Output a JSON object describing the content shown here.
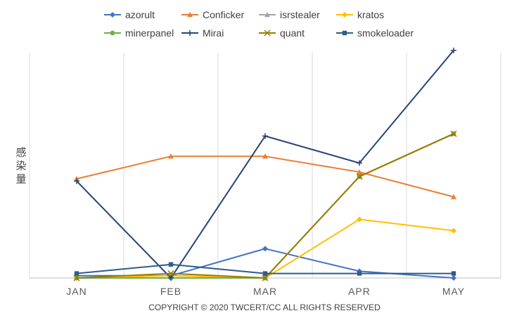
{
  "chart_data": {
    "type": "line",
    "title": "",
    "xlabel": "",
    "ylabel": "感染量",
    "categories": [
      "JAN",
      "FEB",
      "MAR",
      "APR",
      "MAY"
    ],
    "ylim": [
      0,
      100
    ],
    "grid": "vertical",
    "legend_position": "top",
    "footer": "COPYRIGHT © 2020 TWCERT/CC ALL RIGHTS RESERVED",
    "series": [
      {
        "name": "azorult",
        "color": "#4472C4",
        "marker": "diamond",
        "values": [
          1,
          1,
          13,
          3,
          0
        ]
      },
      {
        "name": "Conficker",
        "color": "#ED7D31",
        "marker": "triangle",
        "values": [
          44,
          54,
          54,
          47,
          36
        ]
      },
      {
        "name": "isrstealer",
        "color": "#A5A5A5",
        "marker": "triangle",
        "values": [
          0,
          1,
          0,
          45,
          64
        ]
      },
      {
        "name": "kratos",
        "color": "#FFC000",
        "marker": "diamond",
        "values": [
          0,
          1,
          0,
          26,
          21
        ]
      },
      {
        "name": "minerpanel",
        "color": "#70AD47",
        "marker": "circle",
        "values": [
          0,
          0,
          0,
          45,
          64
        ]
      },
      {
        "name": "Mirai",
        "color": "#264478",
        "marker": "plus",
        "values": [
          43,
          0,
          63,
          51,
          101
        ]
      },
      {
        "name": "quant",
        "color": "#9E7B00",
        "marker": "x",
        "values": [
          0,
          2,
          0,
          45,
          64
        ]
      },
      {
        "name": "smokeloader",
        "color": "#2E5C8A",
        "marker": "square",
        "values": [
          2,
          6,
          2,
          2,
          2
        ]
      }
    ]
  }
}
